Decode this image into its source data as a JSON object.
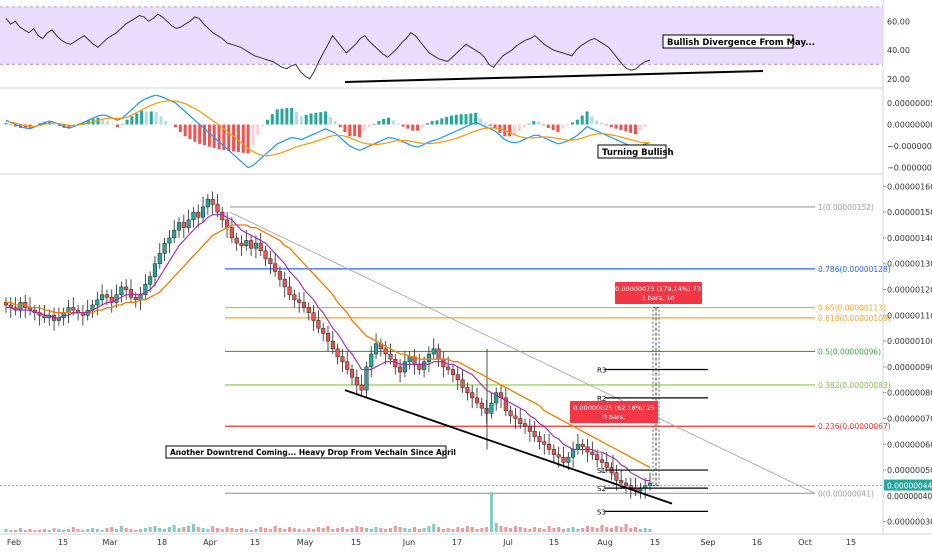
{
  "chart_data": [
    {
      "type": "line",
      "panel": "rsi",
      "y_ticks": [
        "60.00",
        "40.00",
        "20.00"
      ],
      "y_tick_values": [
        60,
        40,
        20
      ],
      "ylim": [
        15,
        72
      ],
      "band": [
        30,
        70
      ],
      "band_color": "#e3d5fa",
      "line_color": "#333333",
      "series": [
        {
          "values": [
            62,
            58,
            60,
            56,
            54,
            52,
            55,
            50,
            48,
            52,
            54,
            50,
            47,
            45,
            44,
            46,
            48,
            50,
            47,
            44,
            42,
            45,
            48,
            50,
            52,
            55,
            58,
            60,
            62,
            64,
            63,
            60,
            62,
            65,
            63,
            60,
            57,
            55,
            56,
            58,
            60,
            63,
            62,
            58,
            55,
            52,
            50,
            48,
            45,
            44,
            43,
            42,
            40,
            38,
            36,
            35,
            34,
            33,
            32,
            30,
            28,
            27,
            29,
            30,
            25,
            22,
            20,
            25,
            32,
            38,
            44,
            50,
            46,
            42,
            38,
            41,
            44,
            48,
            50,
            46,
            43,
            40,
            37,
            35,
            38,
            41,
            45,
            48,
            52,
            50,
            46,
            42,
            38,
            36,
            34,
            33,
            32,
            35,
            38,
            41,
            44,
            42,
            40,
            38,
            35,
            30,
            28,
            32,
            36,
            38,
            40,
            43,
            45,
            47,
            48,
            50,
            47,
            44,
            42,
            40,
            39,
            38,
            37,
            36,
            40,
            43,
            45,
            47,
            48,
            46,
            44,
            42,
            38,
            34,
            30,
            27,
            26,
            27,
            30,
            32,
            33
          ]
        }
      ],
      "annotation": "Bullish Divergence From May..."
    },
    {
      "type": "line",
      "panel": "macd",
      "y_ticks": [
        "0.00000005",
        "0.00000000",
        "−0.00000005",
        "−0.00000010"
      ],
      "y_tick_values": [
        5,
        0,
        -5,
        -10
      ],
      "ylim": [
        -11,
        8
      ],
      "series": [
        {
          "color": "#2196f3",
          "values": [
            1,
            0.5,
            0,
            -0.5,
            -0.8,
            -1,
            -0.5,
            0,
            0.5,
            0.8,
            0.5,
            0,
            -0.5,
            -0.8,
            -0.5,
            0,
            0.5,
            1,
            1.5,
            2,
            2.2,
            2,
            1.5,
            1,
            1.5,
            2.5,
            3.5,
            4.5,
            5.5,
            6,
            6.5,
            6.8,
            6.5,
            6,
            5.5,
            5,
            4,
            3,
            2,
            1,
            0,
            -1,
            -2,
            -3,
            -4,
            -5,
            -6,
            -7,
            -8,
            -9,
            -10,
            -9.5,
            -8.5,
            -7.5,
            -6.5,
            -5.5,
            -4.5,
            -4,
            -3.5,
            -3,
            -3.2,
            -3.5,
            -3,
            -2.5,
            -2,
            -1.5,
            -1,
            -1.5,
            -2,
            -3,
            -4,
            -5,
            -5.5,
            -6,
            -5.5,
            -5,
            -4.5,
            -4,
            -3.5,
            -3,
            -3.2,
            -3.5,
            -4,
            -4.5,
            -5,
            -5.2,
            -4.8,
            -4.2,
            -3.8,
            -3.5,
            -3,
            -2.5,
            -2,
            -1.5,
            -1,
            -0.5,
            0,
            0.5,
            0,
            -0.5,
            -1,
            -1.5,
            -2.5,
            -3.5,
            -4,
            -4.2,
            -4,
            -3.5,
            -3,
            -2.5,
            -2.5,
            -3,
            -3.5,
            -4,
            -4.5,
            -4.2,
            -3.8,
            -3.2,
            -2.5,
            -1.5,
            -0.5,
            -1,
            -1.5,
            -2,
            -2.5,
            -3,
            -3.5,
            -4,
            -4.5,
            -5,
            -5.5,
            -5,
            -4.5,
            -4.2
          ]
        },
        {
          "color": "#ff9800",
          "values": [
            0.8,
            0.6,
            0.3,
            0,
            -0.3,
            -0.5,
            -0.4,
            -0.2,
            0.1,
            0.3,
            0.3,
            0.2,
            0,
            -0.2,
            -0.2,
            -0.1,
            0.1,
            0.4,
            0.7,
            1,
            1.3,
            1.5,
            1.5,
            1.4,
            1.5,
            1.8,
            2.3,
            2.9,
            3.5,
            4.1,
            4.6,
            5,
            5.3,
            5.5,
            5.5,
            5.4,
            5.1,
            4.7,
            4.1,
            3.5,
            2.8,
            2,
            1.2,
            0.4,
            -0.4,
            -1.3,
            -2.2,
            -3.1,
            -4,
            -4.9,
            -5.8,
            -6.5,
            -7,
            -7.2,
            -7.2,
            -7,
            -6.7,
            -6.3,
            -5.9,
            -5.4,
            -5,
            -4.7,
            -4.4,
            -4.1,
            -3.7,
            -3.3,
            -2.9,
            -2.6,
            -2.5,
            -2.6,
            -2.9,
            -3.3,
            -3.8,
            -4.2,
            -4.5,
            -4.6,
            -4.6,
            -4.5,
            -4.3,
            -4,
            -3.8,
            -3.7,
            -3.7,
            -3.9,
            -4.1,
            -4.3,
            -4.4,
            -4.4,
            -4.3,
            -4.1,
            -3.9,
            -3.6,
            -3.3,
            -2.9,
            -2.5,
            -2,
            -1.6,
            -1.2,
            -0.9,
            -0.8,
            -0.8,
            -1,
            -1.3,
            -1.8,
            -2.3,
            -2.7,
            -3,
            -3.1,
            -3.1,
            -3,
            -2.9,
            -2.9,
            -3,
            -3.2,
            -3.4,
            -3.6,
            -3.6,
            -3.5,
            -3.2,
            -2.8,
            -2.4,
            -2.2,
            -2.1,
            -2.2,
            -2.4,
            -2.6,
            -2.9,
            -3.2,
            -3.5,
            -3.8,
            -4.1,
            -4.2,
            -4.2
          ]
        }
      ],
      "annotation": "Turning Bullish"
    },
    {
      "type": "candlestick",
      "panel": "price",
      "title": "",
      "x_tick_labels": [
        "Feb",
        "15",
        "Mar",
        "18",
        "Apr",
        "15",
        "May",
        "15",
        "Jun",
        "17",
        "Jul",
        "15",
        "Aug",
        "15",
        "Sep",
        "16",
        "Oct",
        "15"
      ],
      "y_tick_labels": [
        "0.00000160",
        "0.00000150",
        "0.00000140",
        "0.00000130",
        "0.00000120",
        "0.00000110",
        "0.00000100",
        "0.00000090",
        "0.00000080",
        "0.00000070",
        "0.00000060",
        "0.00000050",
        "0.00000040",
        "0.00000030"
      ],
      "y_tick_values": [
        160,
        150,
        140,
        130,
        120,
        110,
        100,
        90,
        80,
        70,
        60,
        50,
        40,
        30
      ],
      "ylim": [
        26,
        164
      ],
      "units_note": "prices in units of 1e-8",
      "close": [
        114,
        113,
        112,
        115,
        113,
        112,
        111,
        110,
        109,
        110,
        108,
        109,
        111,
        113,
        112,
        111,
        110,
        112,
        114,
        116,
        118,
        117,
        115,
        118,
        121,
        120,
        117,
        116,
        118,
        122,
        125,
        130,
        134,
        138,
        140,
        143,
        146,
        144,
        147,
        150,
        148,
        152,
        155,
        153,
        150,
        147,
        144,
        140,
        138,
        137,
        139,
        136,
        138,
        135,
        132,
        130,
        127,
        124,
        121,
        118,
        116,
        115,
        113,
        111,
        108,
        105,
        103,
        100,
        97,
        94,
        92,
        89,
        86,
        83,
        81,
        90,
        95,
        99,
        97,
        95,
        93,
        90,
        88,
        92,
        94,
        91,
        89,
        92,
        95,
        97,
        93,
        90,
        89,
        87,
        85,
        82,
        80,
        78,
        76,
        74,
        72,
        76,
        80,
        78,
        73,
        71,
        70,
        68,
        67,
        65,
        63,
        61,
        60,
        58,
        56,
        55,
        53,
        55,
        58,
        60,
        59,
        57,
        56,
        54,
        53,
        51,
        49,
        46,
        45,
        44,
        43,
        42,
        43,
        44,
        45
      ],
      "ma_fast": [
        113,
        113,
        112,
        112,
        112,
        112,
        111,
        111,
        110,
        110,
        109,
        109,
        110,
        110,
        111,
        111,
        111,
        111,
        112,
        113,
        114,
        115,
        115,
        116,
        117,
        118,
        118,
        118,
        118,
        119,
        120,
        122,
        125,
        128,
        131,
        134,
        137,
        139,
        141,
        143,
        145,
        146,
        148,
        149,
        149,
        149,
        148,
        147,
        145,
        143,
        142,
        141,
        140,
        139,
        138,
        136,
        134,
        132,
        130,
        127,
        125,
        123,
        120,
        118,
        116,
        113,
        111,
        108,
        105,
        103,
        100,
        97,
        95,
        92,
        89,
        89,
        89,
        90,
        91,
        92,
        92,
        92,
        91,
        91,
        91,
        91,
        91,
        91,
        91,
        92,
        92,
        92,
        91,
        91,
        90,
        89,
        88,
        87,
        85,
        83,
        81,
        80,
        79,
        78,
        77,
        76,
        75,
        74,
        73,
        71,
        70,
        68,
        67,
        65,
        63,
        62,
        60,
        59,
        58,
        58,
        58,
        58,
        58,
        57,
        57,
        56,
        55,
        54,
        52,
        51,
        49,
        48,
        47,
        46,
        46
      ],
      "ma_slow": [
        115,
        115,
        114,
        114,
        114,
        113,
        113,
        113,
        112,
        112,
        111,
        111,
        111,
        111,
        111,
        111,
        111,
        111,
        111,
        112,
        112,
        113,
        113,
        114,
        114,
        115,
        115,
        115,
        116,
        116,
        117,
        118,
        119,
        121,
        123,
        125,
        127,
        129,
        131,
        133,
        135,
        137,
        139,
        141,
        142,
        143,
        144,
        145,
        145,
        145,
        145,
        144,
        144,
        143,
        142,
        141,
        140,
        139,
        137,
        136,
        134,
        132,
        130,
        128,
        126,
        124,
        122,
        120,
        118,
        115,
        113,
        111,
        108,
        106,
        104,
        102,
        101,
        100,
        99,
        98,
        97,
        96,
        95,
        95,
        94,
        94,
        93,
        93,
        93,
        93,
        93,
        93,
        93,
        92,
        92,
        91,
        90,
        89,
        88,
        87,
        86,
        85,
        84,
        83,
        82,
        81,
        80,
        79,
        78,
        77,
        76,
        75,
        73,
        72,
        71,
        70,
        69,
        68,
        67,
        66,
        65,
        64,
        63,
        62,
        61,
        60,
        59,
        58,
        57,
        56,
        55,
        54,
        53,
        52,
        51
      ],
      "fib_levels": [
        {
          "label": "1(0.00000152)",
          "value": 152,
          "color": "#9e9e9e"
        },
        {
          "label": "0.786(0.00000128)",
          "value": 128,
          "color": "#2962ff"
        },
        {
          "label": "0.65(0.00000113)",
          "value": 113,
          "color": "#f9a825"
        },
        {
          "label": "0.618(0.00000109)",
          "value": 109,
          "color": "#f9a825"
        },
        {
          "label": "0.5(0.00000096)",
          "value": 96,
          "color": "#43a047"
        },
        {
          "label": "0.382(0.00000083)",
          "value": 83,
          "color": "#8bc34a"
        },
        {
          "label": "0.236(0.00000067)",
          "value": 67,
          "color": "#e53935"
        },
        {
          "label": "0(0.00000041)",
          "value": 41,
          "color": "#9e9e9e"
        }
      ],
      "pivots": [
        {
          "label": "R3",
          "value": 89
        },
        {
          "label": "R2",
          "value": 78
        },
        {
          "label": "S1",
          "value": 50
        },
        {
          "label": "S2",
          "value": 43
        },
        {
          "label": "S3",
          "value": 34
        }
      ],
      "measure_boxes": [
        {
          "line1": "0.00000073 (179.14%) 73",
          "line2": "1 bars, 1d"
        },
        {
          "line1": "0.00000025 (62.18%) 25",
          "line2": "0 bars,"
        }
      ],
      "annotation": "Another Downtrend Coming... Heavy Drop From Vechain Since April",
      "current_price_labels": [
        "0.00000044",
        "0.00000040"
      ],
      "volume": [
        3,
        2,
        2,
        4,
        2,
        3,
        2,
        2,
        3,
        2,
        4,
        3,
        2,
        3,
        5,
        3,
        2,
        3,
        4,
        3,
        2,
        4,
        5,
        3,
        6,
        4,
        3,
        2,
        3,
        4,
        5,
        6,
        4,
        3,
        5,
        7,
        4,
        5,
        6,
        8,
        5,
        4,
        3,
        6,
        4,
        3,
        5,
        4,
        3,
        4,
        3,
        2,
        3,
        5,
        4,
        3,
        6,
        4,
        3,
        5,
        4,
        3,
        2,
        4,
        3,
        5,
        4,
        6,
        3,
        4,
        5,
        3,
        4,
        6,
        5,
        4,
        3,
        5,
        4,
        3,
        4,
        6,
        5,
        4,
        3,
        5,
        3,
        4,
        6,
        8,
        5,
        3,
        4,
        3,
        5,
        4,
        6,
        5,
        3,
        4,
        5,
        40,
        9,
        6,
        5,
        4,
        6,
        5,
        4,
        3,
        5,
        4,
        3,
        6,
        4,
        5,
        3,
        4,
        5,
        3,
        4,
        6,
        5,
        4,
        7,
        5,
        4,
        6,
        5,
        8,
        4,
        5,
        3,
        4,
        3
      ]
    }
  ]
}
